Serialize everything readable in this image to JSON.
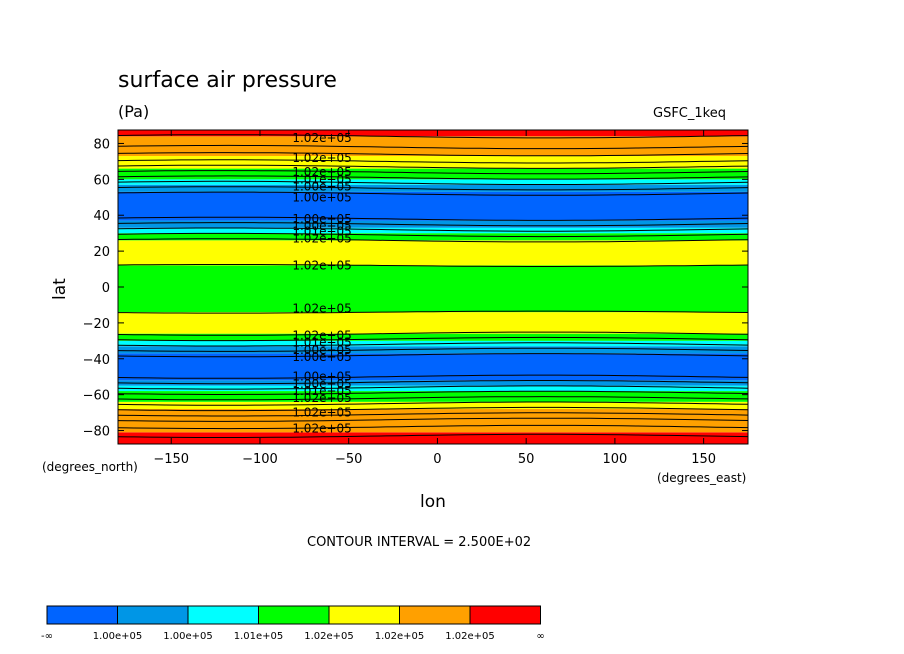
{
  "chart_data": {
    "type": "heatmap",
    "title": "surface air pressure",
    "units": "(Pa)",
    "dataset": "GSFC_1keq",
    "xlabel": "lon",
    "ylabel": "lat",
    "x_units": "(degrees_east)",
    "y_units": "(degrees_north)",
    "xlim": [
      -180,
      175
    ],
    "ylim": [
      -87.5,
      87.5
    ],
    "x_ticks": [
      -150,
      -100,
      -50,
      0,
      50,
      100,
      150
    ],
    "y_ticks": [
      -80,
      -60,
      -40,
      -20,
      0,
      20,
      40,
      60,
      80
    ],
    "contour_interval": "CONTOUR INTERVAL = 2.500E+02",
    "zonal_bands": [
      {
        "lat_from": -87.5,
        "lat_to": -81,
        "color": "red"
      },
      {
        "lat_from": -81,
        "lat_to": -68,
        "color": "orange"
      },
      {
        "lat_from": -68,
        "lat_to": -64,
        "color": "yellow"
      },
      {
        "lat_from": -64,
        "lat_to": -58,
        "color": "green"
      },
      {
        "lat_from": -58,
        "lat_to": -55,
        "color": "cyan"
      },
      {
        "lat_from": -55,
        "lat_to": -52,
        "color": "lightblue"
      },
      {
        "lat_from": -52,
        "lat_to": -37,
        "color": "blue"
      },
      {
        "lat_from": -37,
        "lat_to": -33,
        "color": "lightblue"
      },
      {
        "lat_from": -33,
        "lat_to": -30,
        "color": "cyan"
      },
      {
        "lat_from": -30,
        "lat_to": -26,
        "color": "green"
      },
      {
        "lat_from": -26,
        "lat_to": -14,
        "color": "yellow"
      },
      {
        "lat_from": -14,
        "lat_to": 12,
        "color": "green"
      },
      {
        "lat_from": 12,
        "lat_to": 26,
        "color": "yellow"
      },
      {
        "lat_from": 26,
        "lat_to": 30,
        "color": "green"
      },
      {
        "lat_from": 30,
        "lat_to": 33,
        "color": "cyan"
      },
      {
        "lat_from": 33,
        "lat_to": 37,
        "color": "lightblue"
      },
      {
        "lat_from": 37,
        "lat_to": 53,
        "color": "blue"
      },
      {
        "lat_from": 53,
        "lat_to": 57,
        "color": "lightblue"
      },
      {
        "lat_from": 57,
        "lat_to": 60,
        "color": "cyan"
      },
      {
        "lat_from": 60,
        "lat_to": 66,
        "color": "green"
      },
      {
        "lat_from": 66,
        "lat_to": 73,
        "color": "yellow"
      },
      {
        "lat_from": 73,
        "lat_to": 84,
        "color": "orange"
      },
      {
        "lat_from": 84,
        "lat_to": 87.5,
        "color": "red"
      }
    ],
    "contour_lines_lat": [
      -83,
      -78,
      -74,
      -71,
      -68,
      -65,
      -62,
      -59,
      -56,
      -53,
      -50,
      -38,
      -35,
      -32,
      -29,
      -26,
      -14,
      12,
      26,
      29,
      32,
      35,
      38,
      52,
      55,
      58,
      61,
      64,
      67,
      70,
      74,
      78,
      84
    ],
    "contour_labels": [
      {
        "lon": -65,
        "lat": 83,
        "text": "1.02e+05"
      },
      {
        "lon": -65,
        "lat": 72,
        "text": "1.02e+05"
      },
      {
        "lon": -65,
        "lat": 64,
        "text": "1.02e+05"
      },
      {
        "lon": -65,
        "lat": 60,
        "text": "1.01e+05"
      },
      {
        "lon": -65,
        "lat": 56,
        "text": "1.00e+05"
      },
      {
        "lon": -65,
        "lat": 50,
        "text": "1.00e+05"
      },
      {
        "lon": -65,
        "lat": 38,
        "text": "1.00e+05"
      },
      {
        "lon": -65,
        "lat": 34,
        "text": "1.00e+05"
      },
      {
        "lon": -65,
        "lat": 31,
        "text": "1.01e+05"
      },
      {
        "lon": -65,
        "lat": 27,
        "text": "1.02e+05"
      },
      {
        "lon": -65,
        "lat": 12,
        "text": "1.02e+05"
      },
      {
        "lon": -65,
        "lat": -12,
        "text": "1.02e+05"
      },
      {
        "lon": -65,
        "lat": -27,
        "text": "1.02e+05"
      },
      {
        "lon": -65,
        "lat": -31,
        "text": "1.01e+05"
      },
      {
        "lon": -65,
        "lat": -35,
        "text": "1.00e+05"
      },
      {
        "lon": -65,
        "lat": -39,
        "text": "1.00e+05"
      },
      {
        "lon": -65,
        "lat": -50,
        "text": "1.00e+05"
      },
      {
        "lon": -65,
        "lat": -54,
        "text": "1.00e+05"
      },
      {
        "lon": -65,
        "lat": -58,
        "text": "1.01e+05"
      },
      {
        "lon": -65,
        "lat": -62,
        "text": "1.02e+05"
      },
      {
        "lon": -65,
        "lat": -70,
        "text": "1.02e+05"
      },
      {
        "lon": -65,
        "lat": -79,
        "text": "1.02e+05"
      }
    ],
    "colorbar": {
      "colors": [
        "#0064ff",
        "#0096e6",
        "#00ffff",
        "#00ff00",
        "#ffff00",
        "#ffa000",
        "#ff0000"
      ],
      "labels": [
        "-∞",
        "1.00e+05",
        "1.00e+05",
        "1.01e+05",
        "1.02e+05",
        "1.02e+05",
        "1.02e+05",
        "∞"
      ]
    },
    "colors": {
      "red": "#ff0000",
      "orange": "#ffa000",
      "yellow": "#ffff00",
      "green": "#00ff00",
      "cyan": "#00ffff",
      "lightblue": "#0096e6",
      "blue": "#0064ff"
    }
  }
}
